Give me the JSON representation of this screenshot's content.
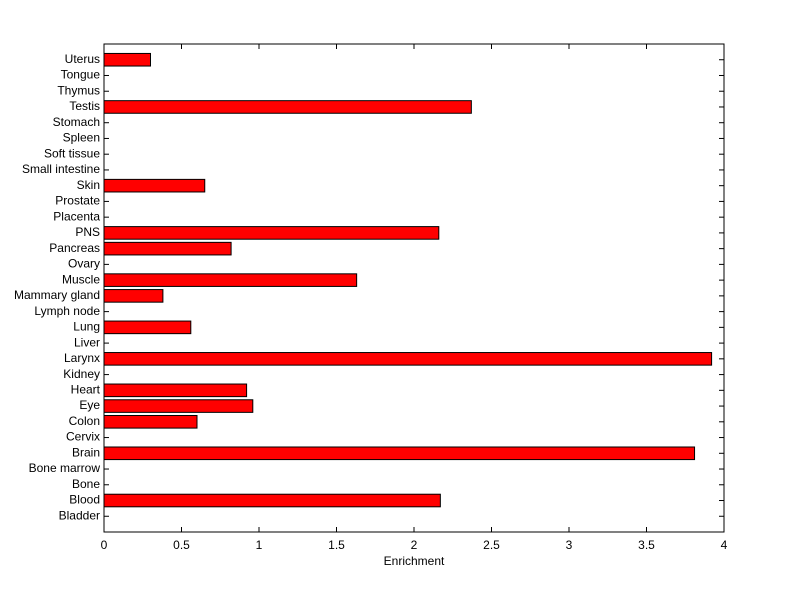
{
  "chart_data": {
    "type": "bar",
    "orientation": "horizontal",
    "xlabel": "Enrichment",
    "categories": [
      "Bladder",
      "Blood",
      "Bone",
      "Bone marrow",
      "Brain",
      "Cervix",
      "Colon",
      "Eye",
      "Heart",
      "Kidney",
      "Larynx",
      "Liver",
      "Lung",
      "Lymph node",
      "Mammary gland",
      "Muscle",
      "Ovary",
      "Pancreas",
      "PNS",
      "Placenta",
      "Prostate",
      "Skin",
      "Small intestine",
      "Soft tissue",
      "Spleen",
      "Stomach",
      "Testis",
      "Thymus",
      "Tongue",
      "Uterus"
    ],
    "values": [
      0,
      2.17,
      0,
      0,
      3.81,
      0,
      0.6,
      0.96,
      0.92,
      0,
      3.92,
      0,
      0.56,
      0,
      0.38,
      1.63,
      0,
      0.82,
      2.16,
      0,
      0,
      0.65,
      0,
      0,
      0,
      0,
      2.37,
      0,
      0,
      0.3
    ],
    "color": "#ff0000",
    "xlim": [
      0,
      4
    ],
    "xticks": [
      0,
      0.5,
      1,
      1.5,
      2,
      2.5,
      3,
      3.5,
      4
    ]
  }
}
